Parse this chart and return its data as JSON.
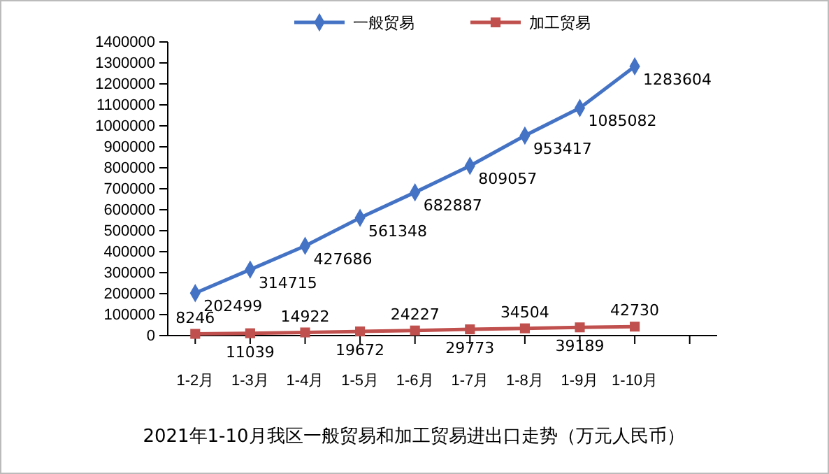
{
  "chart_data": {
    "type": "line",
    "title": "2021年1-10月我区一般贸易和加工贸易进出口走势（万元人民币）",
    "categories": [
      "1-2月",
      "1-3月",
      "1-4月",
      "1-5月",
      "1-6月",
      "1-7月",
      "1-8月",
      "1-9月",
      "1-10月",
      null
    ],
    "series": [
      {
        "name": "一般贸易",
        "color": "#4472c4",
        "marker": "diamond",
        "values": [
          202499,
          314715,
          427686,
          561348,
          682887,
          809057,
          953417,
          1085082,
          1283604,
          null
        ]
      },
      {
        "name": "加工贸易",
        "color": "#c0504d",
        "marker": "square",
        "values": [
          8246,
          11039,
          14922,
          19672,
          24227,
          29773,
          34504,
          39189,
          42730,
          null
        ]
      }
    ],
    "ylim": [
      0,
      1400000
    ],
    "yticks": [
      0,
      100000,
      200000,
      300000,
      400000,
      500000,
      600000,
      700000,
      800000,
      900000,
      1000000,
      1100000,
      1200000,
      1300000,
      1400000
    ],
    "data_labels": true,
    "legend": "top",
    "grid": false
  }
}
